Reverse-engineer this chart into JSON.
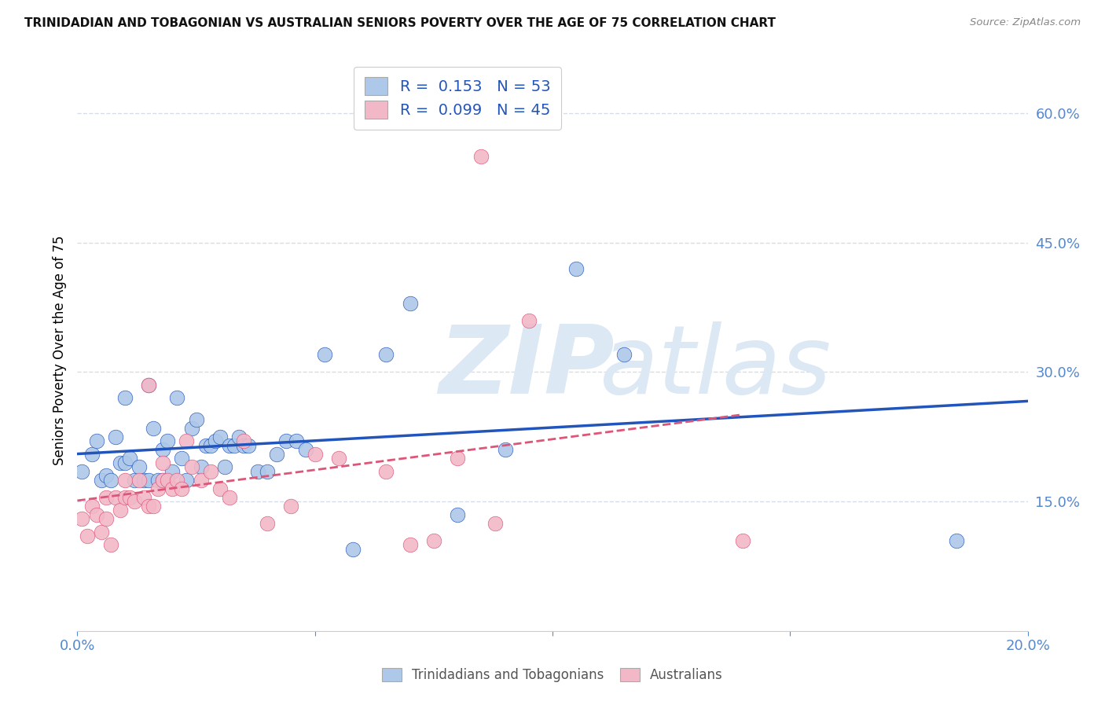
{
  "title": "TRINIDADIAN AND TOBAGONIAN VS AUSTRALIAN SENIORS POVERTY OVER THE AGE OF 75 CORRELATION CHART",
  "source": "Source: ZipAtlas.com",
  "ylabel": "Seniors Poverty Over the Age of 75",
  "blue_R": 0.153,
  "blue_N": 53,
  "pink_R": 0.099,
  "pink_N": 45,
  "blue_color": "#adc8e8",
  "pink_color": "#f2b8c8",
  "blue_line_color": "#2255bb",
  "pink_line_color": "#dd5577",
  "axis_color": "#5588cc",
  "grid_color": "#d5dde8",
  "title_color": "#111111",
  "source_color": "#888888",
  "blue_x": [
    0.001,
    0.003,
    0.004,
    0.005,
    0.006,
    0.007,
    0.008,
    0.009,
    0.01,
    0.01,
    0.011,
    0.012,
    0.013,
    0.014,
    0.015,
    0.015,
    0.016,
    0.017,
    0.018,
    0.018,
    0.019,
    0.02,
    0.021,
    0.022,
    0.023,
    0.024,
    0.025,
    0.026,
    0.027,
    0.028,
    0.029,
    0.03,
    0.031,
    0.032,
    0.033,
    0.034,
    0.035,
    0.036,
    0.038,
    0.04,
    0.042,
    0.044,
    0.046,
    0.048,
    0.052,
    0.058,
    0.065,
    0.07,
    0.08,
    0.09,
    0.105,
    0.115,
    0.185
  ],
  "blue_y": [
    0.185,
    0.205,
    0.22,
    0.175,
    0.18,
    0.175,
    0.225,
    0.195,
    0.195,
    0.27,
    0.2,
    0.175,
    0.19,
    0.175,
    0.175,
    0.285,
    0.235,
    0.175,
    0.175,
    0.21,
    0.22,
    0.185,
    0.27,
    0.2,
    0.175,
    0.235,
    0.245,
    0.19,
    0.215,
    0.215,
    0.22,
    0.225,
    0.19,
    0.215,
    0.215,
    0.225,
    0.215,
    0.215,
    0.185,
    0.185,
    0.205,
    0.22,
    0.22,
    0.21,
    0.32,
    0.095,
    0.32,
    0.38,
    0.135,
    0.21,
    0.42,
    0.32,
    0.105
  ],
  "pink_x": [
    0.001,
    0.002,
    0.003,
    0.004,
    0.005,
    0.006,
    0.006,
    0.007,
    0.008,
    0.009,
    0.01,
    0.01,
    0.011,
    0.012,
    0.013,
    0.014,
    0.015,
    0.015,
    0.016,
    0.017,
    0.018,
    0.018,
    0.019,
    0.02,
    0.021,
    0.022,
    0.023,
    0.024,
    0.026,
    0.028,
    0.03,
    0.032,
    0.035,
    0.04,
    0.045,
    0.05,
    0.055,
    0.065,
    0.07,
    0.075,
    0.08,
    0.085,
    0.088,
    0.095,
    0.14
  ],
  "pink_y": [
    0.13,
    0.11,
    0.145,
    0.135,
    0.115,
    0.13,
    0.155,
    0.1,
    0.155,
    0.14,
    0.155,
    0.175,
    0.155,
    0.15,
    0.175,
    0.155,
    0.145,
    0.285,
    0.145,
    0.165,
    0.175,
    0.195,
    0.175,
    0.165,
    0.175,
    0.165,
    0.22,
    0.19,
    0.175,
    0.185,
    0.165,
    0.155,
    0.22,
    0.125,
    0.145,
    0.205,
    0.2,
    0.185,
    0.1,
    0.105,
    0.2,
    0.55,
    0.125,
    0.36,
    0.105
  ],
  "xlim": [
    0.0,
    0.2
  ],
  "ylim": [
    0.0,
    0.65
  ],
  "xticks": [
    0.0,
    0.05,
    0.1,
    0.15,
    0.2
  ],
  "xtick_show": [
    true,
    false,
    false,
    false,
    true
  ],
  "yticks": [
    0.15,
    0.3,
    0.45,
    0.6
  ],
  "watermark_zip": "ZIP",
  "watermark_atlas": "atlas",
  "watermark_color": "#dce8f4"
}
